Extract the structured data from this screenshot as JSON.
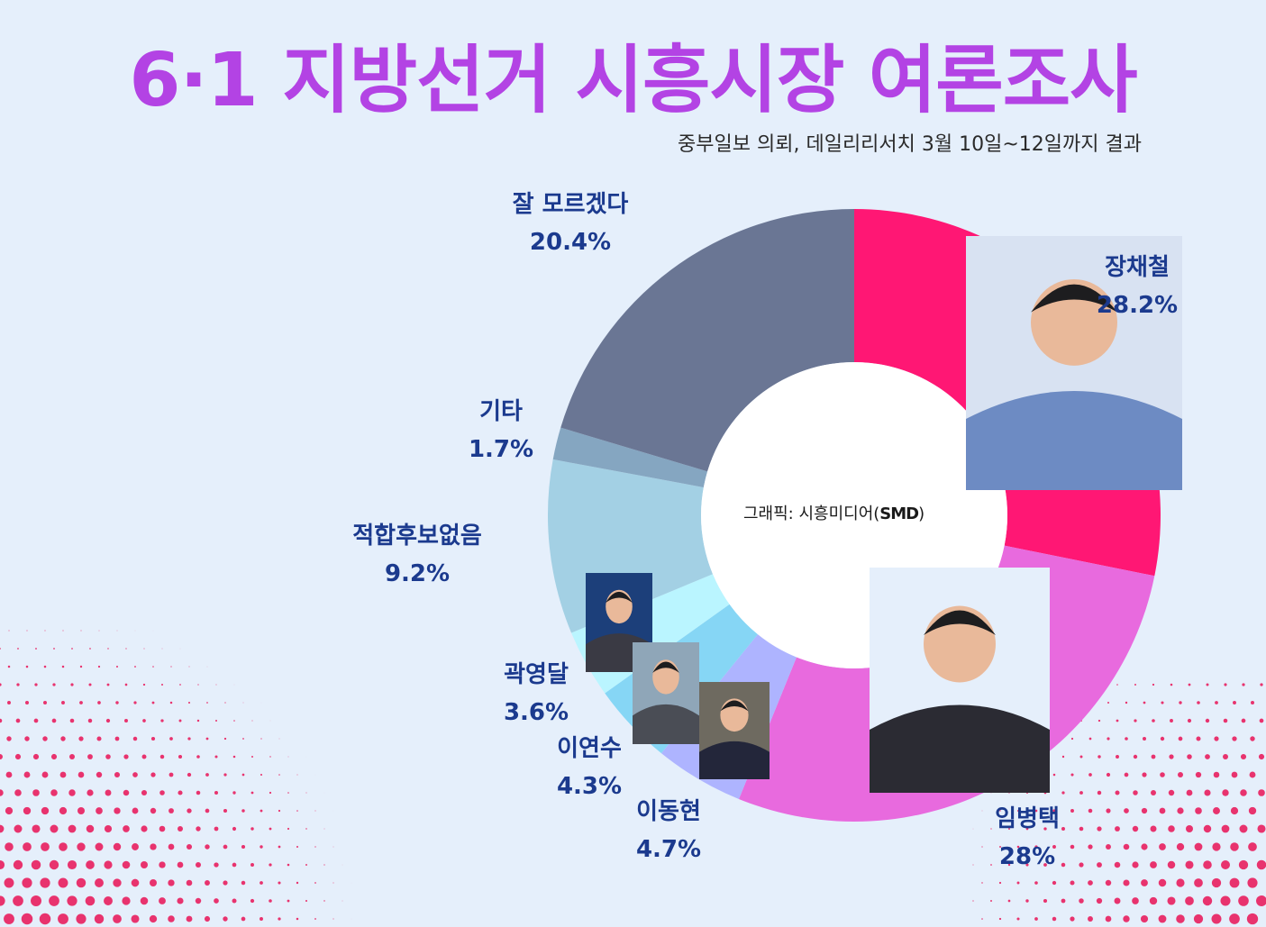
{
  "title": "6·1 지방선거 시흥시장 여론조사",
  "subtitle": "중부일보 의뢰, 데일리리서치 3월 10일~12일까지 결과",
  "credit": {
    "prefix": "그래픽: 시흥미디어(",
    "logo": "SMD",
    "suffix": ")"
  },
  "colors": {
    "title": "#b343e4",
    "label": "#1b3a8e",
    "background": "#e5effb",
    "dots": "#e8336e"
  },
  "chart_data": {
    "type": "pie",
    "style": "donut",
    "start": "12 o'clock, clockwise",
    "slices": [
      {
        "name": "장채철",
        "value": 28.2,
        "label": "28.2%",
        "color": "#ff1774"
      },
      {
        "name": "임병택",
        "value": 28,
        "label": "28%",
        "color": "#e86ade"
      },
      {
        "name": "이동현",
        "value": 4.7,
        "label": "4.7%",
        "color": "#aeb4ff"
      },
      {
        "name": "이연수",
        "value": 4.3,
        "label": "4.3%",
        "color": "#86d6f5"
      },
      {
        "name": "곽영달",
        "value": 3.6,
        "label": "3.6%",
        "color": "#baf5ff"
      },
      {
        "name": "적합후보없음",
        "value": 9.2,
        "label": "9.2%",
        "color": "#a3d0e4"
      },
      {
        "name": "기타",
        "value": 1.7,
        "label": "1.7%",
        "color": "#85a6c1"
      },
      {
        "name": "잘 모르겠다",
        "value": 20.4,
        "label": "20.4%",
        "color": "#6a7694"
      }
    ]
  },
  "photos": [
    {
      "name": "장채철",
      "icon": "person-photo"
    },
    {
      "name": "임병택",
      "icon": "person-photo"
    },
    {
      "name": "곽영달",
      "icon": "person-photo"
    },
    {
      "name": "이연수",
      "icon": "person-photo"
    },
    {
      "name": "이동현",
      "icon": "person-photo"
    }
  ]
}
